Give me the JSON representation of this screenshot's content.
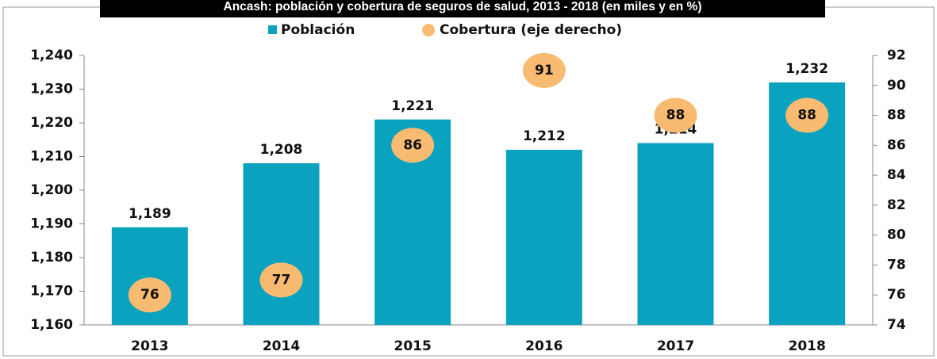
{
  "chart_data": {
    "type": "bar",
    "title": "Ancash: población y cobertura de seguros de salud, 2013 - 2018 (en miles y en %)",
    "categories": [
      "2013",
      "2014",
      "2015",
      "2016",
      "2017",
      "2018"
    ],
    "series": [
      {
        "name": "Población",
        "color": "#0aa2bf",
        "values": [
          1189,
          1208,
          1221,
          1212,
          1214,
          1232
        ],
        "value_labels": [
          "1,189",
          "1,208",
          "1,221",
          "1,212",
          "1,214",
          "1,232"
        ]
      },
      {
        "name": "Cobertura (eje derecho)",
        "type": "scatter",
        "axis": "y2",
        "color": "#f9bb72",
        "values": [
          76,
          77,
          86,
          91,
          88,
          88
        ]
      }
    ],
    "ylim": [
      1160,
      1240
    ],
    "yticks": [
      {
        "value": 1160,
        "label": "1,160"
      },
      {
        "value": 1170,
        "label": "1,170"
      },
      {
        "value": 1180,
        "label": "1,180"
      },
      {
        "value": 1190,
        "label": "1,190"
      },
      {
        "value": 1200,
        "label": "1,200"
      },
      {
        "value": 1210,
        "label": "1,210"
      },
      {
        "value": 1220,
        "label": "1,220"
      },
      {
        "value": 1230,
        "label": "1,230"
      },
      {
        "value": 1240,
        "label": "1,240"
      }
    ],
    "y2lim": [
      74,
      92
    ],
    "y2ticks": [
      74,
      76,
      78,
      80,
      82,
      84,
      86,
      88,
      90,
      92
    ],
    "grid": false
  }
}
